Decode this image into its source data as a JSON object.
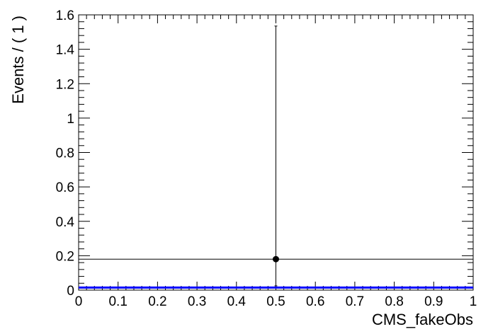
{
  "chart_data": {
    "type": "scatter",
    "xlabel": "CMS_fakeObs",
    "ylabel": "Events / ( 1 )",
    "xlim": [
      0,
      1
    ],
    "ylim": [
      0,
      1.6
    ],
    "x_ticks": [
      0,
      0.1,
      0.2,
      0.3,
      0.4,
      0.5,
      0.6,
      0.7,
      0.8,
      0.9,
      1
    ],
    "x_tick_labels": [
      "0",
      "0.1",
      "0.2",
      "0.3",
      "0.4",
      "0.5",
      "0.6",
      "0.7",
      "0.8",
      "0.9",
      "1"
    ],
    "y_ticks": [
      0,
      0.2,
      0.4,
      0.6,
      0.8,
      1,
      1.2,
      1.4,
      1.6
    ],
    "y_tick_labels": [
      "0",
      "0.2",
      "0.4",
      "0.6",
      "0.8",
      "1",
      "1.2",
      "1.4",
      "1.6"
    ],
    "grid": false,
    "series": [
      {
        "kind": "data-points",
        "color": "#000000",
        "points": [
          {
            "x": 0.5,
            "y": 0.18,
            "x_err": 0.5,
            "y_err_low": 0.155,
            "y_err_high": 1.355
          }
        ]
      },
      {
        "kind": "model-curve",
        "color": "#0000ff",
        "x": [
          0,
          1
        ],
        "y": [
          0.015,
          0.015
        ]
      }
    ]
  }
}
